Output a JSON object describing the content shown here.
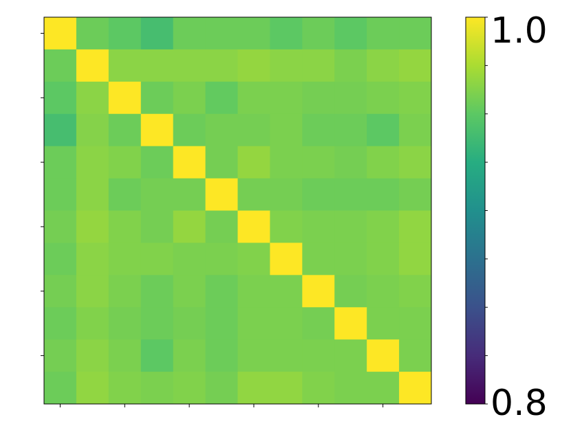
{
  "chart_data": {
    "type": "heatmap",
    "rows": 12,
    "cols": 12,
    "values": [
      [
        1.0,
        0.955,
        0.95,
        0.94,
        0.955,
        0.955,
        0.955,
        0.95,
        0.955,
        0.95,
        0.955,
        0.955
      ],
      [
        0.955,
        1.0,
        0.965,
        0.965,
        0.965,
        0.965,
        0.968,
        0.965,
        0.965,
        0.96,
        0.965,
        0.968
      ],
      [
        0.95,
        0.965,
        1.0,
        0.955,
        0.96,
        0.952,
        0.96,
        0.96,
        0.958,
        0.958,
        0.96,
        0.962
      ],
      [
        0.94,
        0.963,
        0.955,
        1.0,
        0.955,
        0.958,
        0.958,
        0.96,
        0.955,
        0.955,
        0.95,
        0.96
      ],
      [
        0.955,
        0.965,
        0.962,
        0.955,
        1.0,
        0.958,
        0.968,
        0.96,
        0.96,
        0.958,
        0.962,
        0.965
      ],
      [
        0.955,
        0.965,
        0.955,
        0.958,
        0.958,
        1.0,
        0.958,
        0.958,
        0.955,
        0.955,
        0.955,
        0.958
      ],
      [
        0.958,
        0.968,
        0.962,
        0.958,
        0.968,
        0.958,
        1.0,
        0.962,
        0.96,
        0.96,
        0.962,
        0.967
      ],
      [
        0.955,
        0.965,
        0.962,
        0.962,
        0.96,
        0.96,
        0.962,
        1.0,
        0.96,
        0.96,
        0.962,
        0.967
      ],
      [
        0.958,
        0.965,
        0.96,
        0.955,
        0.96,
        0.955,
        0.96,
        0.96,
        1.0,
        0.958,
        0.96,
        0.962
      ],
      [
        0.955,
        0.962,
        0.958,
        0.955,
        0.958,
        0.955,
        0.96,
        0.96,
        0.958,
        1.0,
        0.96,
        0.96
      ],
      [
        0.958,
        0.965,
        0.96,
        0.95,
        0.96,
        0.955,
        0.96,
        0.96,
        0.96,
        0.96,
        1.0,
        0.96
      ],
      [
        0.955,
        0.967,
        0.962,
        0.96,
        0.962,
        0.958,
        0.967,
        0.967,
        0.962,
        0.96,
        0.96,
        1.0
      ]
    ],
    "colormap": "viridis",
    "colorbar": {
      "vmin": 0.8,
      "vmax": 1.0,
      "min_label": "0.8",
      "max_label": "1.0",
      "minor_ticks": 8
    },
    "x_tick_count": 6,
    "y_tick_count": 6,
    "title": "",
    "xlabel": "",
    "ylabel": ""
  },
  "colors": {
    "frame": "#000000",
    "background": "#ffffff"
  }
}
